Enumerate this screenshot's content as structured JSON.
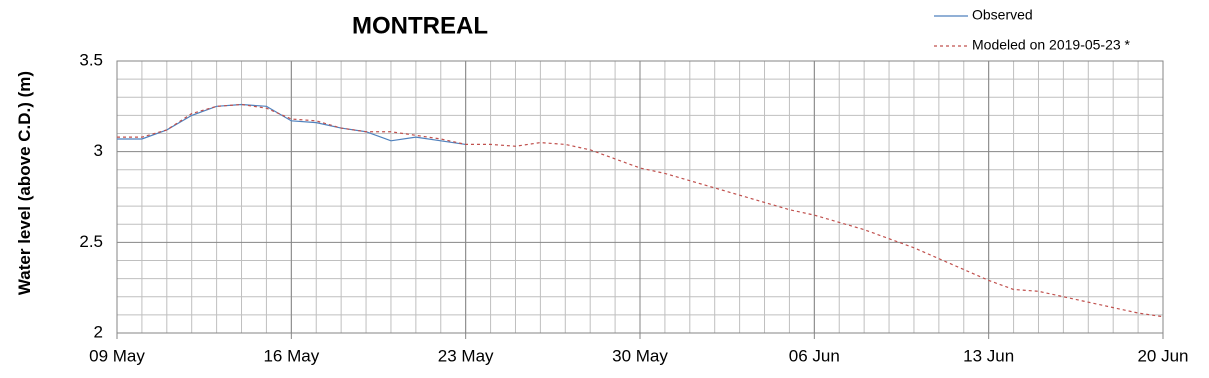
{
  "chart_data": {
    "type": "line",
    "title": "MONTREAL",
    "ylabel": "Water level (above C.D.) (m)",
    "xlim": [
      "09 May",
      "20 Jun"
    ],
    "xticks": [
      "09 May",
      "16 May",
      "23 May",
      "30 May",
      "06 Jun",
      "13 Jun",
      "20 Jun"
    ],
    "ylim": [
      2,
      3.5
    ],
    "yticks": [
      2,
      2.5,
      3,
      3.5
    ],
    "grid": true,
    "legend": "top-right",
    "series": [
      {
        "name": "Observed",
        "color": "#4f81bd",
        "dash": false,
        "x": [
          "09 May",
          "10 May",
          "11 May",
          "12 May",
          "13 May",
          "14 May",
          "15 May",
          "16 May",
          "17 May",
          "18 May",
          "19 May",
          "20 May",
          "21 May",
          "22 May",
          "23 May"
        ],
        "values": [
          3.07,
          3.07,
          3.12,
          3.2,
          3.25,
          3.26,
          3.25,
          3.17,
          3.16,
          3.13,
          3.11,
          3.06,
          3.08,
          3.06,
          3.04
        ]
      },
      {
        "name": "Modeled on 2019-05-23 *",
        "color": "#c0504d",
        "dash": true,
        "x": [
          "09 May",
          "10 May",
          "11 May",
          "12 May",
          "13 May",
          "14 May",
          "15 May",
          "16 May",
          "17 May",
          "18 May",
          "19 May",
          "20 May",
          "21 May",
          "22 May",
          "23 May",
          "24 May",
          "25 May",
          "26 May",
          "27 May",
          "28 May",
          "29 May",
          "30 May",
          "31 May",
          "01 Jun",
          "02 Jun",
          "03 Jun",
          "04 Jun",
          "05 Jun",
          "06 Jun",
          "07 Jun",
          "08 Jun",
          "09 Jun",
          "10 Jun",
          "11 Jun",
          "12 Jun",
          "13 Jun",
          "14 Jun",
          "15 Jun",
          "16 Jun",
          "17 Jun",
          "18 Jun",
          "19 Jun",
          "20 Jun"
        ],
        "values": [
          3.08,
          3.08,
          3.12,
          3.21,
          3.25,
          3.26,
          3.24,
          3.18,
          3.17,
          3.13,
          3.11,
          3.11,
          3.09,
          3.07,
          3.04,
          3.04,
          3.03,
          3.05,
          3.04,
          3.01,
          2.96,
          2.91,
          2.88,
          2.84,
          2.8,
          2.76,
          2.72,
          2.68,
          2.65,
          2.61,
          2.57,
          2.52,
          2.47,
          2.41,
          2.35,
          2.29,
          2.24,
          2.23,
          2.2,
          2.17,
          2.14,
          2.11,
          2.09
        ]
      }
    ]
  }
}
